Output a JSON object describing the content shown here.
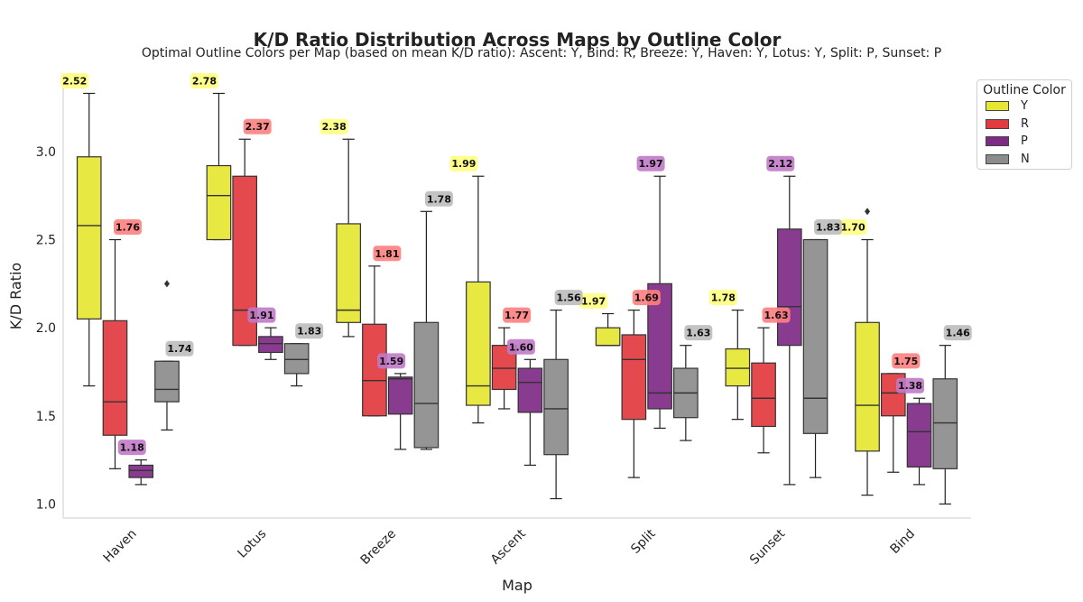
{
  "chart_data": {
    "type": "box",
    "title": "K/D Ratio Distribution Across Maps by Outline Color",
    "subtitle": "Optimal Outline Colors per Map (based on mean K/D ratio): Ascent: Y, Bind: R, Breeze: Y, Haven: Y, Lotus: Y, Split: P, Sunset: P",
    "xlabel": "Map",
    "ylabel": "K/D Ratio",
    "ylim": [
      0.92,
      3.44
    ],
    "yticks": [
      "1.0",
      "1.5",
      "2.0",
      "2.5",
      "3.0"
    ],
    "categories": [
      "Haven",
      "Lotus",
      "Breeze",
      "Ascent",
      "Split",
      "Sunset",
      "Bind"
    ],
    "legend": {
      "title": "Outline Color",
      "entries": [
        {
          "label": "Y",
          "color": "#e6e633"
        },
        {
          "label": "R",
          "color": "#e23a3e"
        },
        {
          "label": "P",
          "color": "#7e2a86"
        },
        {
          "label": "N",
          "color": "#8c8c8c"
        }
      ]
    },
    "series": [
      {
        "name": "Y",
        "boxes": [
          {
            "min": 1.67,
            "q1": 2.05,
            "median": 2.58,
            "q3": 2.97,
            "max": 3.33,
            "mean": "2.52"
          },
          {
            "min": 2.5,
            "q1": 2.5,
            "median": 2.75,
            "q3": 2.92,
            "max": 3.33,
            "mean": "2.78"
          },
          {
            "min": 1.95,
            "q1": 2.03,
            "median": 2.1,
            "q3": 2.59,
            "max": 3.07,
            "mean": "2.38"
          },
          {
            "min": 1.46,
            "q1": 1.56,
            "median": 1.67,
            "q3": 2.26,
            "max": 2.86,
            "mean": "1.99"
          },
          {
            "min": 1.9,
            "q1": 1.9,
            "median": 1.9,
            "q3": 2.0,
            "max": 2.08,
            "mean": "1.97"
          },
          {
            "min": 1.48,
            "q1": 1.67,
            "median": 1.77,
            "q3": 1.88,
            "max": 2.1,
            "mean": "1.78"
          },
          {
            "min": 1.05,
            "q1": 1.3,
            "median": 1.56,
            "q3": 2.03,
            "max": 2.5,
            "mean": "1.70"
          }
        ]
      },
      {
        "name": "R",
        "boxes": [
          {
            "min": 1.2,
            "q1": 1.39,
            "median": 1.58,
            "q3": 2.04,
            "max": 2.5,
            "mean": "1.76"
          },
          {
            "min": 1.9,
            "q1": 1.9,
            "median": 2.1,
            "q3": 2.86,
            "max": 3.07,
            "mean": "2.37"
          },
          {
            "min": 1.5,
            "q1": 1.5,
            "median": 1.7,
            "q3": 2.02,
            "max": 2.35,
            "mean": "1.81"
          },
          {
            "min": 1.54,
            "q1": 1.65,
            "median": 1.77,
            "q3": 1.9,
            "max": 2.0,
            "mean": "1.77"
          },
          {
            "min": 1.15,
            "q1": 1.48,
            "median": 1.82,
            "q3": 1.96,
            "max": 2.1,
            "mean": "1.69"
          },
          {
            "min": 1.29,
            "q1": 1.44,
            "median": 1.6,
            "q3": 1.8,
            "max": 2.0,
            "mean": "1.63"
          },
          {
            "min": 1.18,
            "q1": 1.5,
            "median": 1.63,
            "q3": 1.74,
            "max": 1.74,
            "mean": "1.75"
          }
        ]
      },
      {
        "name": "P",
        "boxes": [
          {
            "min": 1.11,
            "q1": 1.15,
            "median": 1.19,
            "q3": 1.22,
            "max": 1.25,
            "mean": "1.18"
          },
          {
            "min": 1.82,
            "q1": 1.86,
            "median": 1.91,
            "q3": 1.95,
            "max": 2.0,
            "mean": "1.91"
          },
          {
            "min": 1.31,
            "q1": 1.51,
            "median": 1.71,
            "q3": 1.72,
            "max": 1.74,
            "mean": "1.59"
          },
          {
            "min": 1.22,
            "q1": 1.52,
            "median": 1.69,
            "q3": 1.77,
            "max": 1.82,
            "mean": "1.60"
          },
          {
            "min": 1.43,
            "q1": 1.54,
            "median": 1.63,
            "q3": 2.25,
            "max": 2.86,
            "mean": "1.97"
          },
          {
            "min": 1.11,
            "q1": 1.9,
            "median": 2.12,
            "q3": 2.56,
            "max": 2.86,
            "mean": "2.12"
          },
          {
            "min": 1.11,
            "q1": 1.21,
            "median": 1.41,
            "q3": 1.57,
            "max": 1.6,
            "mean": "1.38"
          }
        ]
      },
      {
        "name": "N",
        "boxes": [
          {
            "min": 1.42,
            "q1": 1.58,
            "median": 1.65,
            "q3": 1.81,
            "max": 1.81,
            "mean": "1.74",
            "outliers": [
              2.25
            ]
          },
          {
            "min": 1.67,
            "q1": 1.74,
            "median": 1.82,
            "q3": 1.91,
            "max": 1.91,
            "mean": "1.83"
          },
          {
            "min": 1.31,
            "q1": 1.32,
            "median": 1.57,
            "q3": 2.03,
            "max": 2.66,
            "mean": "1.78"
          },
          {
            "min": 1.03,
            "q1": 1.28,
            "median": 1.54,
            "q3": 1.82,
            "max": 2.1,
            "mean": "1.56"
          },
          {
            "min": 1.36,
            "q1": 1.49,
            "median": 1.63,
            "q3": 1.77,
            "max": 1.9,
            "mean": "1.63"
          },
          {
            "min": 1.15,
            "q1": 1.4,
            "median": 1.6,
            "q3": 2.5,
            "max": 2.5,
            "mean": "1.83"
          },
          {
            "min": 1.0,
            "q1": 1.2,
            "median": 1.46,
            "q3": 1.71,
            "max": 1.9,
            "mean": "1.46"
          }
        ]
      }
    ],
    "extra_outliers": [
      {
        "series": "Y",
        "category": "Bind",
        "value": 2.66
      }
    ],
    "label_colors": {
      "Y": "#ffff80",
      "R": "#ff8080",
      "P": "#c07ac6",
      "N": "#bdbdbd"
    }
  }
}
